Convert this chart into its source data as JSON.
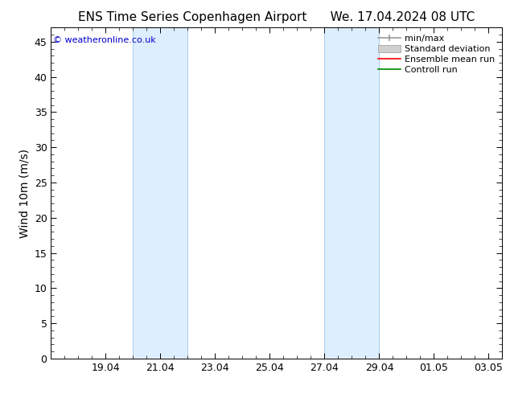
{
  "title_left": "ENS Time Series Copenhagen Airport",
  "title_right": "We. 17.04.2024 08 UTC",
  "ylabel": "Wind 10m (m/s)",
  "watermark": "© weatheronline.co.uk",
  "watermark_color": "#0000cc",
  "ylim": [
    0,
    47
  ],
  "yticks": [
    0,
    5,
    10,
    15,
    20,
    25,
    30,
    35,
    40,
    45
  ],
  "xtick_labels": [
    "19.04",
    "21.04",
    "23.04",
    "25.04",
    "27.04",
    "29.04",
    "01.05",
    "03.05"
  ],
  "xtick_positions": [
    2,
    4,
    6,
    8,
    10,
    12,
    14,
    16
  ],
  "xlim": [
    0,
    16.5
  ],
  "shaded_bands": [
    {
      "x_start": 3.0,
      "x_end": 5.0
    },
    {
      "x_start": 10.0,
      "x_end": 12.0
    }
  ],
  "shaded_color": "#ddeeff",
  "shaded_edge_color": "#aaccee",
  "background_color": "#ffffff",
  "legend_items": [
    {
      "label": "min/max",
      "color": "#aaaaaa"
    },
    {
      "label": "Standard deviation",
      "color": "#cccccc"
    },
    {
      "label": "Ensemble mean run",
      "color": "#ff0000"
    },
    {
      "label": "Controll run",
      "color": "#008800"
    }
  ],
  "font_size_title": 11,
  "font_size_tick": 9,
  "font_size_legend": 8,
  "font_size_ylabel": 10,
  "font_size_watermark": 8
}
